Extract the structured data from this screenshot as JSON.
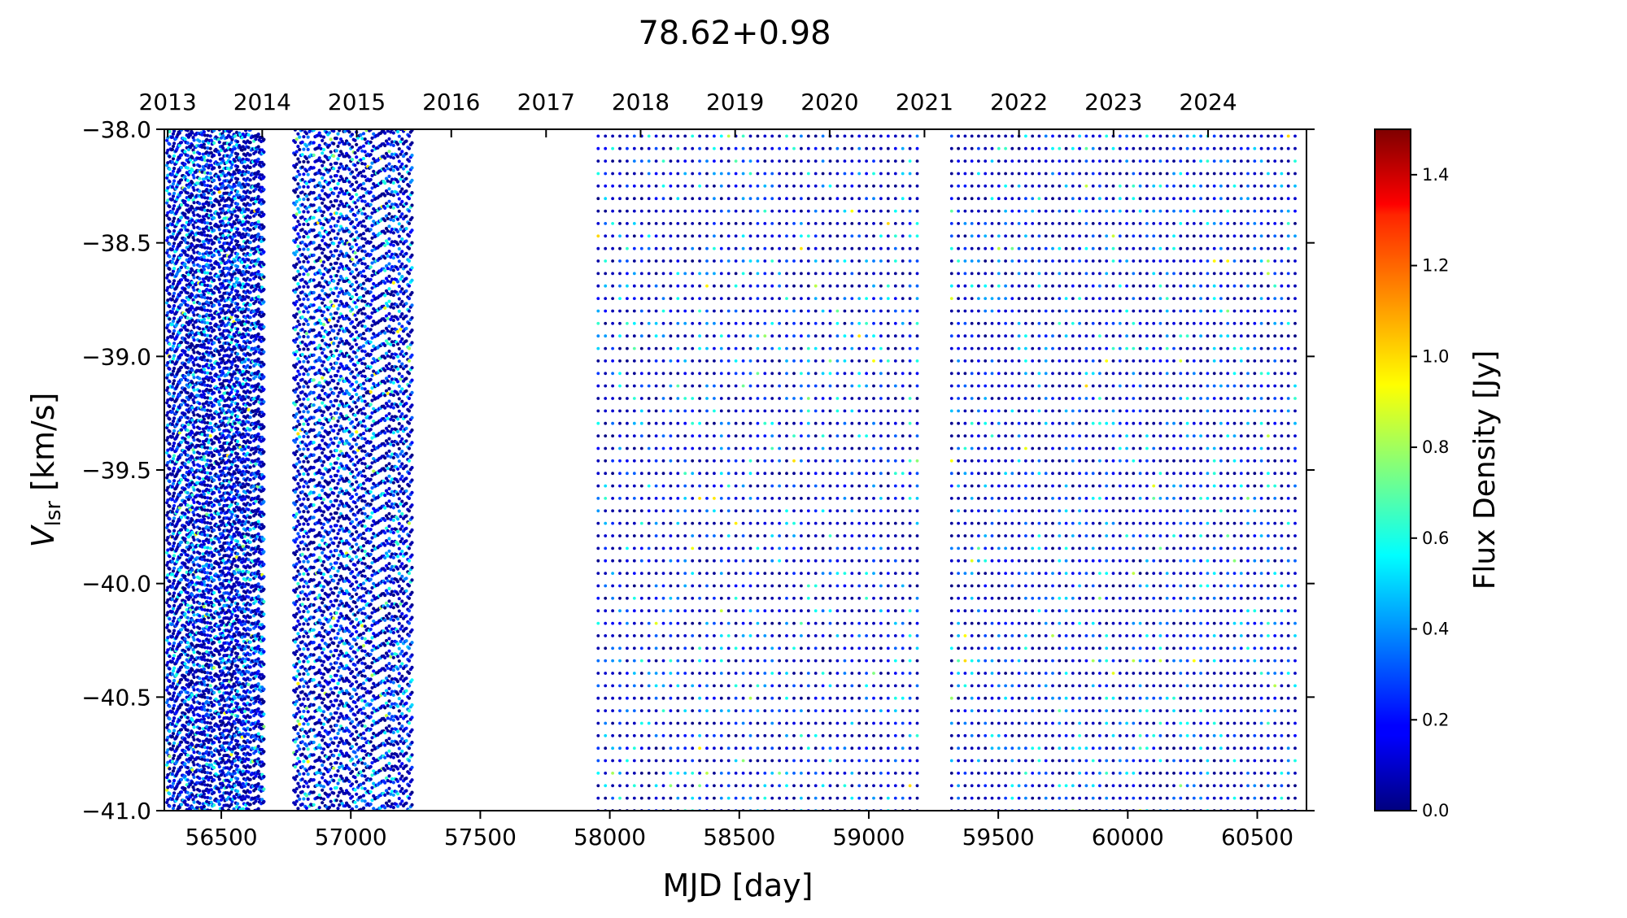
{
  "chart_data": {
    "type": "scatter",
    "title": "78.62+0.98",
    "xlabel": "MJD [day]",
    "ylabel_main": "V",
    "ylabel_sub": "lsr",
    "ylabel_unit": " [km/s]",
    "xlim": [
      56280,
      60690
    ],
    "ylim": [
      -41.0,
      -38.0
    ],
    "x_ticks": [
      56500,
      57000,
      57500,
      58000,
      58500,
      59000,
      59500,
      60000,
      60500
    ],
    "y_ticks": [
      -38.0,
      -38.5,
      -39.0,
      -39.5,
      -40.0,
      -40.5,
      -41.0
    ],
    "y_tick_labels": [
      "−38.0",
      "−38.5",
      "−39.0",
      "−39.5",
      "−40.0",
      "−40.5",
      "−41.0"
    ],
    "top_axis": {
      "labels": [
        "2013",
        "2014",
        "2015",
        "2016",
        "2017",
        "2018",
        "2019",
        "2020",
        "2021",
        "2022",
        "2023",
        "2024"
      ],
      "mjd": [
        56293,
        56658,
        57023,
        57388,
        57754,
        58119,
        58484,
        58849,
        59215,
        59580,
        59945,
        60310
      ]
    },
    "colorbar": {
      "label": "Flux Density [Jy]",
      "colormap": "jet",
      "range": [
        0.0,
        1.5
      ],
      "ticks": [
        0.0,
        0.2,
        0.4,
        0.6,
        0.8,
        1.0,
        1.2,
        1.4
      ],
      "tick_labels": [
        "0.0",
        "0.2",
        "0.4",
        "0.6",
        "0.8",
        "1.0",
        "1.2",
        "1.4"
      ]
    },
    "observation_periods": [
      {
        "start_mjd": 56290,
        "end_mjd": 56665,
        "cadence_days": 3.5
      },
      {
        "start_mjd": 56780,
        "end_mjd": 57240,
        "cadence_days": 5.5
      },
      {
        "start_mjd": 57955,
        "end_mjd": 59200,
        "cadence_days": 28
      },
      {
        "start_mjd": 59320,
        "end_mjd": 60660,
        "cadence_days": 26
      }
    ],
    "velocity_channel_km_s": 0.055,
    "typical_flux_jy": [
      0.0,
      0.6
    ],
    "max_flux_jy": 1.0
  }
}
